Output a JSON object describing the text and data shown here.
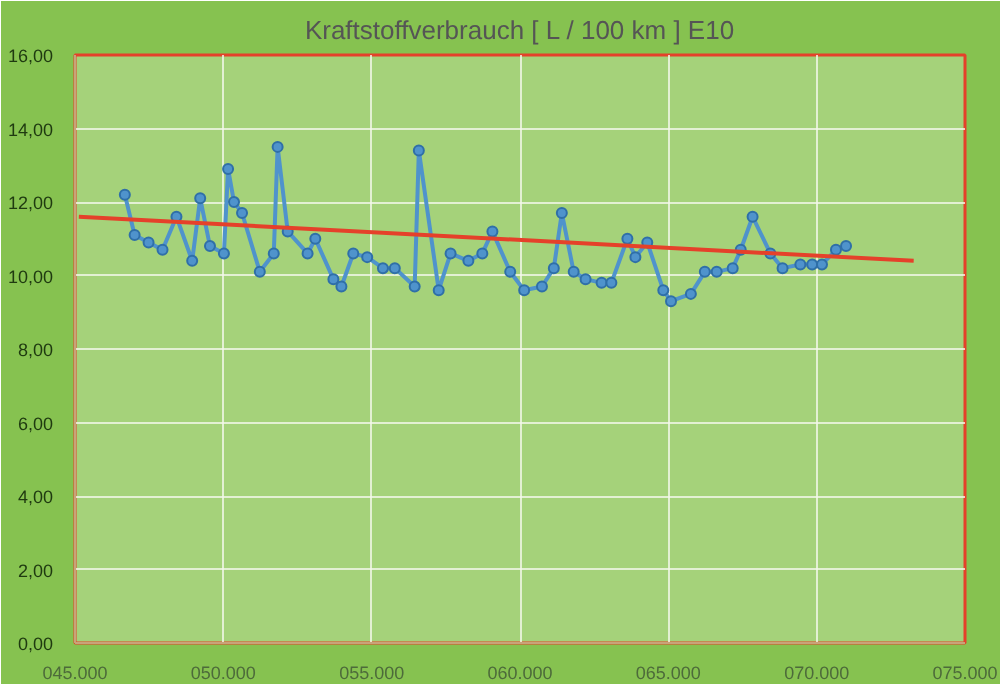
{
  "chart_data": {
    "type": "line",
    "title": "Kraftstoffverbrauch [ L / 100 km ] E10",
    "xlim": [
      45,
      75
    ],
    "xticks": [
      {
        "value": 45,
        "label": "045.000"
      },
      {
        "value": 50,
        "label": "050.000"
      },
      {
        "value": 55,
        "label": "055.000"
      },
      {
        "value": 60,
        "label": "060.000"
      },
      {
        "value": 65,
        "label": "065.000"
      },
      {
        "value": 70,
        "label": "070.000"
      },
      {
        "value": 75,
        "label": "075.000"
      }
    ],
    "ylim": [
      0,
      16
    ],
    "yticks": [
      {
        "value": 0,
        "label": "0,00"
      },
      {
        "value": 2,
        "label": "2,00"
      },
      {
        "value": 4,
        "label": "4,00"
      },
      {
        "value": 6,
        "label": "6,00"
      },
      {
        "value": 8,
        "label": "8,00"
      },
      {
        "value": 10,
        "label": "10,00"
      },
      {
        "value": 12,
        "label": "12,00"
      },
      {
        "value": 14,
        "label": "14,00"
      },
      {
        "value": 16,
        "label": "16,00"
      }
    ],
    "grid": true,
    "marker": "circle",
    "line_style": "solid",
    "series": [
      {
        "color": "#4f93cc",
        "x": [
          46.68,
          47.01,
          47.48,
          47.95,
          48.42,
          48.95,
          49.22,
          49.55,
          50.02,
          50.16,
          50.36,
          50.63,
          51.23,
          51.7,
          51.83,
          52.17,
          52.84,
          53.1,
          53.71,
          53.98,
          54.38,
          54.85,
          55.38,
          55.78,
          56.45,
          56.59,
          57.26,
          57.66,
          58.26,
          58.73,
          59.07,
          59.67,
          60.14,
          60.74,
          61.14,
          61.41,
          61.81,
          62.21,
          62.75,
          63.08,
          63.62,
          63.89,
          64.29,
          64.83,
          65.09,
          65.76,
          66.23,
          66.63,
          67.17,
          67.44,
          67.84,
          68.44,
          68.85,
          69.45,
          69.85,
          70.18,
          70.65,
          70.99
        ],
        "values": [
          12.2,
          11.1,
          10.9,
          10.7,
          11.6,
          10.4,
          12.1,
          10.8,
          10.6,
          12.9,
          12.0,
          11.7,
          10.1,
          10.6,
          13.5,
          11.2,
          10.6,
          11.0,
          9.9,
          9.7,
          10.6,
          10.5,
          10.2,
          10.2,
          9.7,
          13.4,
          9.6,
          10.6,
          10.4,
          10.6,
          11.2,
          10.1,
          9.6,
          9.7,
          10.2,
          11.7,
          10.1,
          9.9,
          9.8,
          9.8,
          11.0,
          10.5,
          10.9,
          9.6,
          9.3,
          9.5,
          10.1,
          10.1,
          10.2,
          10.7,
          11.6,
          10.6,
          10.2,
          10.3,
          10.3,
          10.3,
          10.7,
          10.8
        ]
      },
      {
        "type": "line",
        "marker": "none",
        "color": "#e5412a",
        "x": [
          45.13,
          73.27
        ],
        "values": [
          11.6,
          10.4
        ]
      }
    ]
  }
}
